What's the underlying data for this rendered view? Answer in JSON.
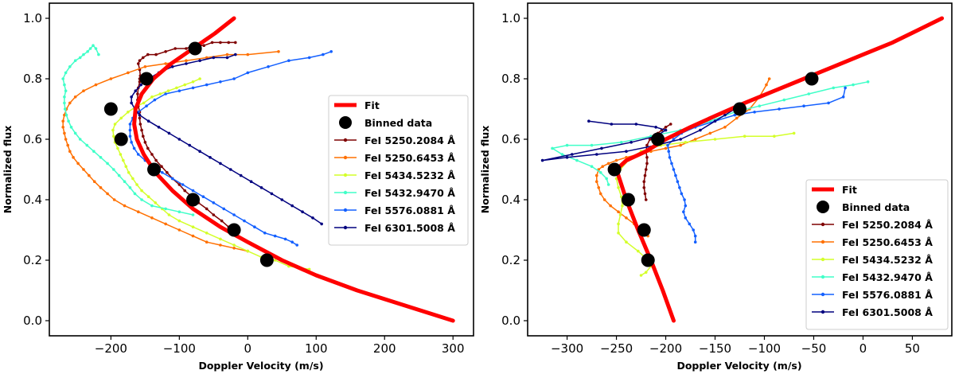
{
  "colors": {
    "fit": "#ff0000",
    "binned": "#000000",
    "fe5250_2084": "#7f0000",
    "fe5250_6453": "#ff7000",
    "fe5434_5232": "#d4ff2a",
    "fe5432_9470": "#40ffc8",
    "fe5576_0881": "#1460ff",
    "fe6301_5008": "#00007f"
  },
  "chart_data": [
    {
      "type": "line",
      "title": "",
      "xlabel": "Doppler Velocity (m/s)",
      "ylabel": "Normalized flux",
      "xlim": [
        -290,
        330
      ],
      "ylim": [
        -0.05,
        1.05
      ],
      "xticks": [
        -200,
        -100,
        0,
        100,
        200,
        300
      ],
      "xtick_labels": [
        "−200",
        "−100",
        "0",
        "100",
        "200",
        "300"
      ],
      "yticks": [
        0.0,
        0.2,
        0.4,
        0.6,
        0.8,
        1.0
      ],
      "ytick_labels": [
        "0.0",
        "0.2",
        "0.4",
        "0.6",
        "0.8",
        "1.0"
      ],
      "legend_position": "right",
      "legend": [
        "Fit",
        "Binned data",
        "FeI 5250.2084 Å",
        "FeI 5250.6453 Å",
        "FeI 5434.5232 Å",
        "FeI 5432.9470 Å",
        "FeI 5576.0881 Å",
        "FeI 6301.5008 Å"
      ],
      "fit": {
        "name": "Fit",
        "x": [
          300,
          230,
          160,
          100,
          50,
          0,
          -40,
          -80,
          -110,
          -135,
          -152,
          -162,
          -166,
          -164,
          -155,
          -138,
          -112,
          -80,
          -48,
          -20
        ],
        "y": [
          0.0,
          0.05,
          0.1,
          0.15,
          0.2,
          0.26,
          0.31,
          0.37,
          0.43,
          0.49,
          0.55,
          0.6,
          0.65,
          0.7,
          0.75,
          0.8,
          0.85,
          0.9,
          0.95,
          1.0
        ]
      },
      "binned": {
        "name": "Binned data",
        "x": [
          28,
          -20,
          -80,
          -137,
          -185,
          -200,
          -148,
          -77
        ],
        "y": [
          0.2,
          0.3,
          0.4,
          0.5,
          0.6,
          0.7,
          0.8,
          0.9
        ]
      },
      "series": [
        {
          "name": "FeI 5250.2084 Å",
          "x": [
            -18,
            -28,
            -38,
            -50,
            -60,
            -72,
            -82,
            -92,
            -100,
            -110,
            -118,
            -126,
            -134,
            -140,
            -146,
            -150,
            -153,
            -155,
            -157,
            -158,
            -158,
            -160,
            -161,
            -161,
            -160,
            -158,
            -158,
            -157,
            -158,
            -160,
            -158,
            -153,
            -146,
            -134,
            -120,
            -106,
            -90,
            -78,
            -64,
            -52,
            -40,
            -28,
            -18
          ],
          "y": [
            0.29,
            0.31,
            0.33,
            0.35,
            0.37,
            0.39,
            0.41,
            0.43,
            0.45,
            0.47,
            0.49,
            0.51,
            0.53,
            0.55,
            0.57,
            0.59,
            0.61,
            0.63,
            0.65,
            0.67,
            0.69,
            0.71,
            0.73,
            0.75,
            0.77,
            0.79,
            0.8,
            0.81,
            0.83,
            0.85,
            0.86,
            0.87,
            0.88,
            0.88,
            0.89,
            0.9,
            0.9,
            0.91,
            0.91,
            0.92,
            0.92,
            0.92,
            0.92
          ]
        },
        {
          "name": "FeI 5250.6453 Å",
          "x": [
            0,
            -20,
            -40,
            -60,
            -80,
            -100,
            -120,
            -140,
            -160,
            -180,
            -195,
            -205,
            -215,
            -224,
            -232,
            -240,
            -248,
            -255,
            -260,
            -263,
            -266,
            -268,
            -270,
            -270,
            -268,
            -265,
            -260,
            -252,
            -240,
            -222,
            -200,
            -175,
            -150,
            -120,
            -90,
            -60,
            -30,
            0,
            45
          ],
          "y": [
            0.23,
            0.24,
            0.25,
            0.26,
            0.28,
            0.3,
            0.32,
            0.34,
            0.36,
            0.38,
            0.4,
            0.42,
            0.44,
            0.46,
            0.48,
            0.5,
            0.52,
            0.54,
            0.56,
            0.58,
            0.6,
            0.62,
            0.64,
            0.66,
            0.68,
            0.7,
            0.72,
            0.74,
            0.76,
            0.78,
            0.8,
            0.82,
            0.84,
            0.85,
            0.86,
            0.87,
            0.88,
            0.88,
            0.89
          ]
        },
        {
          "name": "FeI 5434.5232 Å",
          "x": [
            90,
            60,
            40,
            20,
            0,
            -20,
            -40,
            -60,
            -80,
            -100,
            -115,
            -125,
            -135,
            -145,
            -155,
            -162,
            -168,
            -174,
            -178,
            -182,
            -186,
            -190,
            -194,
            -196,
            -197,
            -194,
            -185,
            -175,
            -162,
            -152,
            -140,
            -128,
            -116,
            -104,
            -92,
            -80,
            -70
          ],
          "y": [
            0.17,
            0.18,
            0.2,
            0.21,
            0.23,
            0.25,
            0.27,
            0.29,
            0.31,
            0.33,
            0.35,
            0.37,
            0.39,
            0.41,
            0.43,
            0.45,
            0.47,
            0.49,
            0.51,
            0.53,
            0.55,
            0.57,
            0.59,
            0.61,
            0.63,
            0.65,
            0.67,
            0.69,
            0.71,
            0.72,
            0.74,
            0.75,
            0.76,
            0.77,
            0.78,
            0.79,
            0.8
          ]
        },
        {
          "name": "FeI 5432.9470 Å",
          "x": [
            -80,
            -100,
            -120,
            -140,
            -155,
            -165,
            -172,
            -180,
            -188,
            -196,
            -205,
            -215,
            -225,
            -235,
            -245,
            -252,
            -258,
            -262,
            -265,
            -267,
            -268,
            -268,
            -266,
            -268,
            -270,
            -266,
            -260,
            -252,
            -245,
            -240,
            -234,
            -230,
            -226,
            -222,
            -218
          ],
          "y": [
            0.35,
            0.36,
            0.37,
            0.38,
            0.4,
            0.42,
            0.44,
            0.46,
            0.48,
            0.5,
            0.52,
            0.54,
            0.56,
            0.58,
            0.6,
            0.62,
            0.64,
            0.66,
            0.68,
            0.7,
            0.72,
            0.74,
            0.76,
            0.78,
            0.8,
            0.82,
            0.84,
            0.86,
            0.87,
            0.88,
            0.89,
            0.9,
            0.91,
            0.9,
            0.88
          ]
        },
        {
          "name": "FeI 5576.0881 Å",
          "x": [
            72,
            65,
            55,
            40,
            25,
            10,
            -5,
            -20,
            -35,
            -50,
            -65,
            -80,
            -95,
            -110,
            -125,
            -140,
            -150,
            -160,
            -166,
            -170,
            -172,
            -172,
            -172,
            -168,
            -160,
            -148,
            -136,
            -120,
            -100,
            -80,
            -60,
            -40,
            -20,
            0,
            30,
            60,
            90,
            110,
            122
          ],
          "y": [
            0.25,
            0.26,
            0.27,
            0.28,
            0.29,
            0.31,
            0.33,
            0.35,
            0.37,
            0.39,
            0.41,
            0.43,
            0.45,
            0.47,
            0.49,
            0.51,
            0.53,
            0.55,
            0.57,
            0.59,
            0.61,
            0.63,
            0.65,
            0.67,
            0.69,
            0.71,
            0.73,
            0.75,
            0.76,
            0.77,
            0.78,
            0.79,
            0.8,
            0.82,
            0.84,
            0.86,
            0.87,
            0.88,
            0.89
          ]
        },
        {
          "name": "FeI 6301.5008 Å",
          "x": [
            108,
            95,
            80,
            65,
            50,
            35,
            20,
            5,
            -10,
            -25,
            -40,
            -55,
            -70,
            -85,
            -100,
            -115,
            -130,
            -145,
            -158,
            -165,
            -170,
            -170,
            -164,
            -156,
            -145,
            -130,
            -110,
            -90,
            -70,
            -50,
            -30,
            -18
          ],
          "y": [
            0.32,
            0.34,
            0.36,
            0.38,
            0.4,
            0.42,
            0.44,
            0.46,
            0.48,
            0.5,
            0.52,
            0.54,
            0.56,
            0.58,
            0.6,
            0.62,
            0.64,
            0.66,
            0.68,
            0.7,
            0.72,
            0.74,
            0.76,
            0.78,
            0.8,
            0.82,
            0.84,
            0.85,
            0.86,
            0.87,
            0.87,
            0.88
          ]
        }
      ]
    },
    {
      "type": "line",
      "title": "",
      "xlabel": "Doppler Velocity (m/s)",
      "ylabel": "Normalized flux",
      "xlim": [
        -340,
        90
      ],
      "ylim": [
        -0.05,
        1.05
      ],
      "xticks": [
        -300,
        -250,
        -200,
        -150,
        -100,
        -50,
        0,
        50
      ],
      "xtick_labels": [
        "−300",
        "−250",
        "−200",
        "−150",
        "−100",
        "−50",
        "0",
        "50"
      ],
      "yticks": [
        0.0,
        0.2,
        0.4,
        0.6,
        0.8,
        1.0
      ],
      "ytick_labels": [
        "0.0",
        "0.2",
        "0.4",
        "0.6",
        "0.8",
        "1.0"
      ],
      "legend_position": "lower right",
      "legend": [
        "Fit",
        "Binned data",
        "FeI 5250.2084 Å",
        "FeI 5250.6453 Å",
        "FeI 5434.5232 Å",
        "FeI 5432.9470 Å",
        "FeI 5576.0881 Å",
        "FeI 6301.5008 Å"
      ],
      "fit": {
        "name": "Fit",
        "x": [
          -192,
          -203,
          -215,
          -228,
          -240,
          -250,
          -240,
          -220,
          -200,
          -175,
          -148,
          -120,
          -90,
          -60,
          -30,
          0,
          30,
          55,
          80
        ],
        "y": [
          0.0,
          0.1,
          0.2,
          0.3,
          0.4,
          0.5,
          0.53,
          0.56,
          0.6,
          0.64,
          0.68,
          0.72,
          0.76,
          0.8,
          0.84,
          0.88,
          0.92,
          0.96,
          1.0
        ]
      },
      "binned": {
        "name": "Binned data",
        "x": [
          -218,
          -222,
          -238,
          -252,
          -208,
          -125,
          -52
        ],
        "y": [
          0.2,
          0.3,
          0.4,
          0.5,
          0.6,
          0.7,
          0.8
        ]
      },
      "series": [
        {
          "name": "FeI 5250.2084 Å",
          "x": [
            -220,
            -221,
            -222,
            -222,
            -221,
            -220,
            -219,
            -219,
            -220,
            -219,
            -216,
            -212,
            -208,
            -204,
            -200,
            -195
          ],
          "y": [
            0.4,
            0.42,
            0.44,
            0.46,
            0.48,
            0.5,
            0.52,
            0.54,
            0.56,
            0.58,
            0.6,
            0.61,
            0.62,
            0.63,
            0.64,
            0.65
          ]
        },
        {
          "name": "FeI 5250.6453 Å",
          "x": [
            -218,
            -225,
            -232,
            -240,
            -248,
            -256,
            -262,
            -266,
            -268,
            -270,
            -270,
            -268,
            -264,
            -258,
            -250,
            -240,
            -228,
            -215,
            -200,
            -185,
            -170,
            -155,
            -140,
            -128,
            -115,
            -105,
            -98,
            -95
          ],
          "y": [
            0.28,
            0.3,
            0.32,
            0.34,
            0.36,
            0.38,
            0.4,
            0.42,
            0.44,
            0.46,
            0.48,
            0.5,
            0.51,
            0.52,
            0.53,
            0.54,
            0.55,
            0.56,
            0.57,
            0.58,
            0.6,
            0.62,
            0.64,
            0.67,
            0.7,
            0.74,
            0.78,
            0.8
          ]
        },
        {
          "name": "FeI 5434.5232 Å",
          "x": [
            -225,
            -220,
            -215,
            -218,
            -228,
            -240,
            -248,
            -248,
            -246,
            -244,
            -245,
            -248,
            -250,
            -246,
            -238,
            -225,
            -205,
            -180,
            -150,
            -120,
            -90,
            -70
          ],
          "y": [
            0.15,
            0.16,
            0.18,
            0.2,
            0.23,
            0.26,
            0.29,
            0.32,
            0.35,
            0.38,
            0.41,
            0.44,
            0.47,
            0.5,
            0.53,
            0.56,
            0.58,
            0.59,
            0.6,
            0.61,
            0.61,
            0.62
          ]
        },
        {
          "name": "FeI 5432.9470 Å",
          "x": [
            -258,
            -260,
            -266,
            -275,
            -290,
            -305,
            -315,
            -300,
            -275,
            -245,
            -215,
            -185,
            -155,
            -130,
            -105,
            -80,
            -55,
            -30,
            -10,
            5
          ],
          "y": [
            0.45,
            0.47,
            0.49,
            0.51,
            0.53,
            0.55,
            0.57,
            0.58,
            0.58,
            0.59,
            0.61,
            0.63,
            0.66,
            0.69,
            0.71,
            0.73,
            0.75,
            0.77,
            0.78,
            0.79
          ]
        },
        {
          "name": "FeI 5576.0881 Å",
          "x": [
            -170,
            -170,
            -172,
            -176,
            -180,
            -182,
            -180,
            -181,
            -184,
            -186,
            -188,
            -190,
            -192,
            -194,
            -196,
            -197,
            -198,
            -192,
            -184,
            -170,
            -150,
            -130,
            -110,
            -85,
            -60,
            -35,
            -20,
            -18
          ],
          "y": [
            0.26,
            0.28,
            0.3,
            0.32,
            0.34,
            0.36,
            0.38,
            0.4,
            0.42,
            0.44,
            0.46,
            0.48,
            0.5,
            0.52,
            0.54,
            0.56,
            0.58,
            0.6,
            0.62,
            0.64,
            0.66,
            0.68,
            0.69,
            0.7,
            0.71,
            0.72,
            0.74,
            0.77
          ]
        },
        {
          "name": "FeI 6301.5008 Å",
          "x": [
            -278,
            -255,
            -230,
            -210,
            -200,
            -210,
            -235,
            -265,
            -295,
            -325,
            -300,
            -270,
            -240,
            -210,
            -185,
            -165,
            -150,
            -140,
            -130,
            -120
          ],
          "y": [
            0.66,
            0.65,
            0.65,
            0.64,
            0.63,
            0.61,
            0.59,
            0.57,
            0.55,
            0.53,
            0.54,
            0.55,
            0.56,
            0.58,
            0.6,
            0.63,
            0.66,
            0.68,
            0.7,
            0.72
          ]
        }
      ]
    }
  ]
}
